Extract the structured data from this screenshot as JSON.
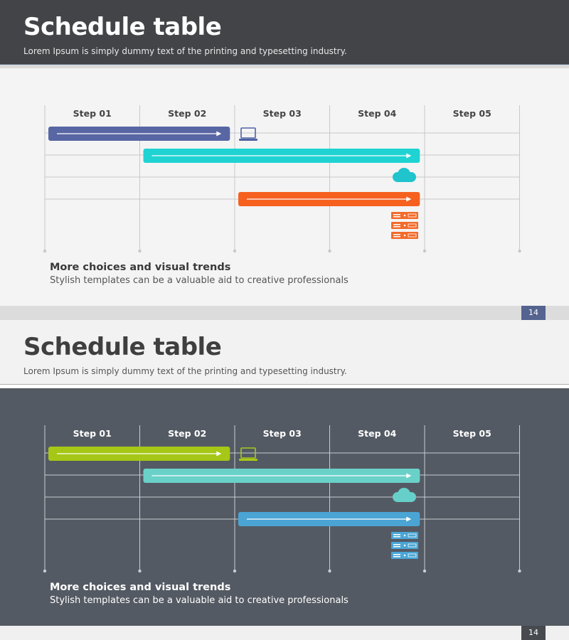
{
  "slides": [
    {
      "title": "Schedule table",
      "subtitle": "Lorem Ipsum is simply dummy text of the printing and typesetting industry.",
      "page_number": "14",
      "caption_title": "More choices and visual trends",
      "caption_text": "Stylish templates can be a valuable aid to  creative professionals",
      "theme": {
        "gridline": "#c8c8c8",
        "step_label": "#444444",
        "laptop_color": "#4f63a3",
        "cloud_color": "#1fc4cc",
        "server_color": "#f36a2a"
      },
      "icons": [
        "laptop-icon",
        "cloud-icon",
        "server-rack-icon"
      ]
    },
    {
      "title": "Schedule table",
      "subtitle": "Lorem Ipsum is simply dummy text of the printing and typesetting industry.",
      "page_number": "14",
      "caption_title": "More choices and visual trends",
      "caption_text": "Stylish templates can be a valuable aid to  creative professionals",
      "theme": {
        "gridline": "#c9ccd0",
        "step_label": "#ffffff",
        "laptop_color": "#a8c81a",
        "cloud_color": "#67cfc9",
        "server_color": "#4aa6d6"
      },
      "icons": [
        "laptop-icon",
        "cloud-icon",
        "server-rack-icon"
      ]
    }
  ],
  "chart_data": [
    {
      "type": "gantt",
      "steps": [
        "Step 01",
        "Step 02",
        "Step 03",
        "Step 04",
        "Step 05"
      ],
      "tasks": [
        {
          "start": 0.0,
          "end": 1.95,
          "color": "#5866a3",
          "icon": "laptop-icon"
        },
        {
          "start": 1.0,
          "end": 3.95,
          "color": "#1fd3d3",
          "icon": "cloud-icon"
        },
        {
          "start": 2.0,
          "end": 3.95,
          "color": "#f66120",
          "icon": "server-rack-icon"
        }
      ]
    },
    {
      "type": "gantt",
      "steps": [
        "Step 01",
        "Step 02",
        "Step 03",
        "Step 04",
        "Step 05"
      ],
      "tasks": [
        {
          "start": 0.0,
          "end": 1.95,
          "color": "#a6c716",
          "icon": "laptop-icon"
        },
        {
          "start": 1.0,
          "end": 3.95,
          "color": "#6ad1c9",
          "icon": "cloud-icon"
        },
        {
          "start": 2.0,
          "end": 3.95,
          "color": "#4aa4d4",
          "icon": "server-rack-icon"
        }
      ]
    }
  ]
}
